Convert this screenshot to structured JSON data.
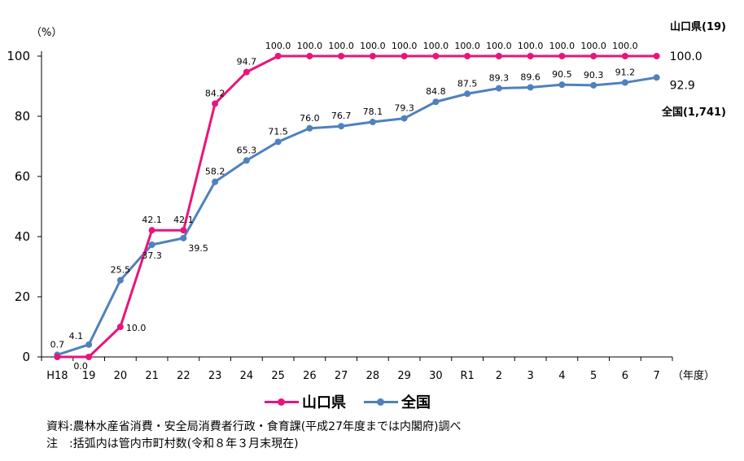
{
  "chart_data": {
    "type": "line",
    "unit_label": "（%）",
    "x_axis_suffix": "（年度）",
    "categories": [
      "H18",
      "19",
      "20",
      "21",
      "22",
      "23",
      "24",
      "25",
      "26",
      "27",
      "28",
      "29",
      "30",
      "R1",
      "2",
      "3",
      "4",
      "5",
      "6",
      "7"
    ],
    "ylim": [
      0,
      100
    ],
    "yticks": [
      0,
      20,
      40,
      60,
      80,
      100
    ],
    "grid": false,
    "legend_position": "bottom",
    "series": [
      {
        "name": "山口県",
        "color": "#E8157A",
        "end_annotation": "山口県(19)",
        "values": [
          0.0,
          0.0,
          10.0,
          42.1,
          42.1,
          84.2,
          94.7,
          100.0,
          100.0,
          100.0,
          100.0,
          100.0,
          100.0,
          100.0,
          100.0,
          100.0,
          100.0,
          100.0,
          100.0,
          100.0
        ],
        "labels": [
          "",
          "0.0",
          "10.0",
          "42.1",
          "42.1",
          "84.2",
          "94.7",
          "100.0",
          "100.0",
          "100.0",
          "100.0",
          "100.0",
          "100.0",
          "100.0",
          "100.0",
          "100.0",
          "100.0",
          "100.0",
          "100.0",
          "100.0"
        ]
      },
      {
        "name": "全国",
        "color": "#4F81BD",
        "end_annotation": "全国(1,741)",
        "values": [
          0.7,
          4.1,
          25.5,
          37.3,
          39.5,
          58.2,
          65.3,
          71.5,
          76.0,
          76.7,
          78.1,
          79.3,
          84.8,
          87.5,
          89.3,
          89.6,
          90.5,
          90.3,
          91.2,
          92.9
        ],
        "labels": [
          "0.7",
          "4.1",
          "25.5",
          "37.3",
          "39.5",
          "58.2",
          "65.3",
          "71.5",
          "76.0",
          "76.7",
          "78.1",
          "79.3",
          "84.8",
          "87.5",
          "89.3",
          "89.6",
          "90.5",
          "90.3",
          "91.2",
          "92.9"
        ]
      }
    ]
  },
  "notes": {
    "source": "資料:農林水産省消費・安全局消費者行政・食育課(平成27年度までは内閣府)調べ",
    "note": "注　:括弧内は管内市町村数(令和８年３月末現在)"
  }
}
